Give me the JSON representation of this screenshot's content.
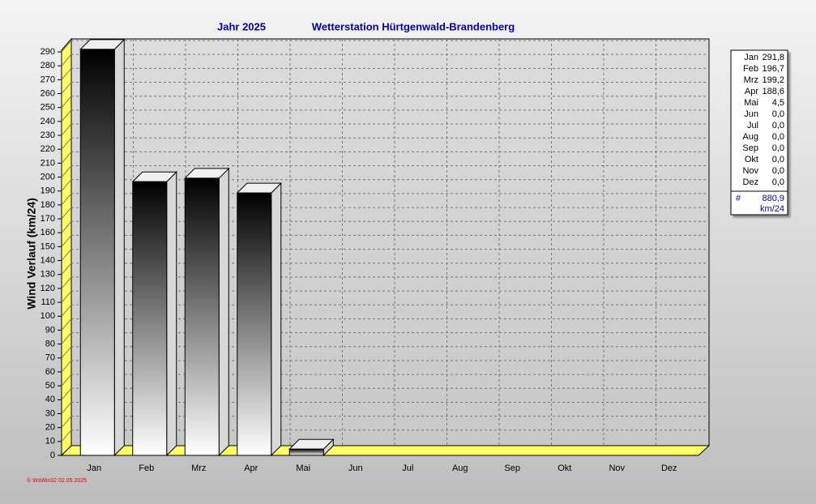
{
  "chart_data": {
    "type": "bar3d",
    "title": "Jahr  2025",
    "subtitle": "Wetterstation Hürtgenwald-Brandenberg",
    "y_label": "Wind Verlauf  (km/24)",
    "categories": [
      "Jan",
      "Feb",
      "Mrz",
      "Apr",
      "Mai",
      "Jun",
      "Jul",
      "Aug",
      "Sep",
      "Okt",
      "Nov",
      "Dez"
    ],
    "values": [
      291.8,
      196.7,
      199.2,
      188.6,
      4.5,
      0,
      0,
      0,
      0,
      0,
      0,
      0
    ],
    "value_labels": [
      "291,8",
      "196,7",
      "199,2",
      "188,6",
      "4,5",
      "0,0",
      "0,0",
      "0,0",
      "0,0",
      "0,0",
      "0,0",
      "0,0"
    ],
    "gradient": [
      "#000000",
      "#ffffff"
    ],
    "ylim": [
      0,
      290
    ],
    "yticks": [
      0,
      10,
      20,
      30,
      40,
      50,
      60,
      70,
      80,
      90,
      100,
      110,
      120,
      130,
      140,
      150,
      160,
      170,
      180,
      190,
      200,
      210,
      220,
      230,
      240,
      250,
      260,
      270,
      280,
      290
    ],
    "grid": true,
    "total": {
      "value": 880.9,
      "label": "880,9"
    },
    "total_symbol": "#",
    "unit": "km/24",
    "footer": "© WsWin32  02.05.2025"
  }
}
